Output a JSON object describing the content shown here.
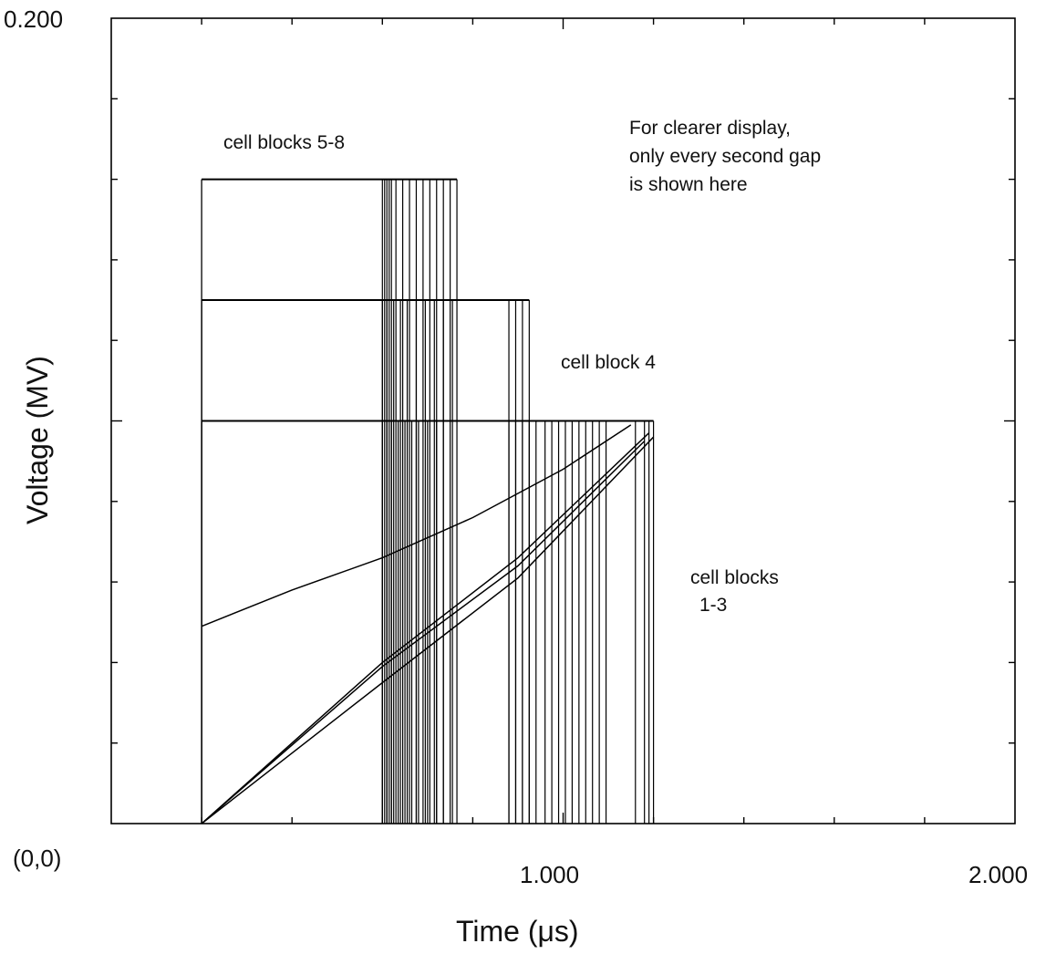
{
  "chart_data": {
    "type": "line",
    "title": "",
    "xlabel": "Time (μs)",
    "ylabel": "Voltage (MV)",
    "xlim": [
      0,
      2.0
    ],
    "ylim": [
      0,
      0.2
    ],
    "origin_label": "(0,0)",
    "x_tick_labels": [
      {
        "value": 1.0,
        "label": "1.000"
      },
      {
        "value": 2.0,
        "label": "2.000"
      }
    ],
    "y_tick_labels": [
      {
        "value": 0.2,
        "label": "0.200"
      }
    ],
    "grid": false,
    "line_color": "#000000",
    "annotations": {
      "blocks_5_8": "cell blocks 5-8",
      "block_4": "cell block 4",
      "blocks_1_3_line1": "cell blocks",
      "blocks_1_3_line2": "1-3",
      "note_line1": "For clearer display,",
      "note_line2": "only every second gap",
      "note_line3": "is shown here"
    },
    "series": [
      {
        "group": "cell blocks 5-8",
        "plateau_voltage": 0.16,
        "rise_time": 0.2,
        "fall_times": [
          0.6,
          0.605,
          0.61,
          0.615,
          0.62,
          0.63,
          0.645,
          0.66,
          0.675,
          0.69,
          0.705,
          0.72,
          0.735,
          0.75,
          0.765
        ]
      },
      {
        "group": "cell block 4",
        "plateau_voltage": 0.13,
        "rise_time": 0.2,
        "fall_times": [
          0.6,
          0.61,
          0.625,
          0.64,
          0.655,
          0.675,
          0.695,
          0.715,
          0.735,
          0.755,
          0.88,
          0.895,
          0.91,
          0.925
        ]
      },
      {
        "group": "cell blocks 1-3",
        "plateau_voltage": 0.1,
        "rise_time": 0.2,
        "fall_times": [
          0.6,
          0.61,
          0.62,
          0.635,
          0.65,
          0.665,
          0.68,
          0.7,
          0.72,
          0.88,
          0.895,
          0.91,
          0.925,
          0.94,
          0.96,
          0.975,
          0.99,
          1.005,
          1.02,
          1.035,
          1.05,
          1.065,
          1.08,
          1.095,
          1.16,
          1.18,
          1.19,
          1.2
        ]
      },
      {
        "group": "cell blocks 1-3",
        "ramp_points": [
          [
            0.2,
            0.049
          ],
          [
            0.4,
            0.058
          ],
          [
            0.6,
            0.066
          ],
          [
            0.8,
            0.076
          ],
          [
            1.0,
            0.088
          ],
          [
            1.15,
            0.099
          ]
        ]
      },
      {
        "group": "cell blocks 1-3",
        "ramp_points": [
          [
            0.2,
            0.0
          ],
          [
            0.6,
            0.04
          ],
          [
            0.9,
            0.066
          ],
          [
            1.19,
            0.097
          ]
        ]
      },
      {
        "group": "cell blocks 1-3",
        "ramp_points": [
          [
            0.2,
            0.0
          ],
          [
            0.6,
            0.039
          ],
          [
            0.9,
            0.064
          ],
          [
            1.18,
            0.095
          ]
        ]
      },
      {
        "group": "cell blocks 1-3",
        "ramp_points": [
          [
            0.2,
            0.0
          ],
          [
            0.6,
            0.035
          ],
          [
            0.9,
            0.061
          ],
          [
            1.2,
            0.096
          ]
        ]
      }
    ]
  }
}
